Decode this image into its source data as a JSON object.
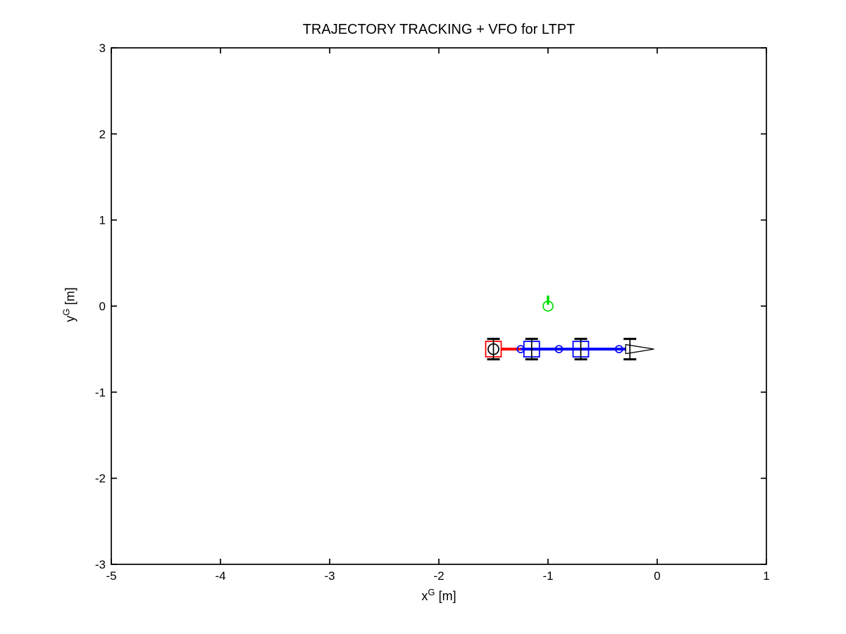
{
  "figure": {
    "background": "#ffffff",
    "axis_color": "#000000"
  },
  "chart_data": {
    "type": "line",
    "title": "TRAJECTORY TRACKING + VFO for LTPT",
    "xlabel": {
      "base": "x",
      "sup": "G",
      "unit": "[m]"
    },
    "ylabel": {
      "base": "y",
      "sup": "G",
      "unit": "[m]"
    },
    "xlim": [
      -5,
      1
    ],
    "ylim": [
      -3,
      3
    ],
    "xticks": [
      -5,
      -4,
      -3,
      -2,
      -1,
      0,
      1
    ],
    "yticks": [
      -3,
      -2,
      -1,
      0,
      1,
      2,
      3
    ],
    "grid": false,
    "legend": null,
    "reference_marker": {
      "x": -1.0,
      "y": 0.0,
      "heading_deg": 90,
      "color": "#00dd00"
    },
    "vehicle": {
      "y": -0.5,
      "links": [
        {
          "x1": -1.5,
          "x2": -1.25,
          "color": "#ff0000"
        },
        {
          "x1": -1.25,
          "x2": -0.25,
          "color": "#0000ff"
        }
      ],
      "bodies": [
        {
          "x": -1.5,
          "color": "#ff0000",
          "guidance": true
        },
        {
          "x": -1.15,
          "color": "#0000ff",
          "guidance": false
        },
        {
          "x": -0.7,
          "color": "#0000ff",
          "guidance": false
        }
      ],
      "joints": [
        -1.25,
        -0.9,
        -0.35
      ],
      "axles": [
        -1.5,
        -1.15,
        -0.7,
        -0.25
      ],
      "heading_arrow": {
        "x1": -0.25,
        "x2": -0.03
      }
    }
  }
}
